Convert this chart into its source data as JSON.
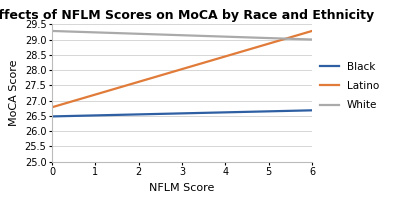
{
  "title": "Effects of NFLM Scores on MoCA by Race and Ethnicity",
  "xlabel": "NFLM Score",
  "ylabel": "MoCA Score",
  "xlim": [
    0,
    6
  ],
  "ylim": [
    25,
    29.5
  ],
  "yticks": [
    25,
    25.5,
    26,
    26.5,
    27,
    27.5,
    28,
    28.5,
    29,
    29.5
  ],
  "xticks": [
    0,
    1,
    2,
    3,
    4,
    5,
    6
  ],
  "lines": {
    "Black": {
      "x": [
        0,
        6
      ],
      "y": [
        26.48,
        26.68
      ],
      "color": "#2E5FA3",
      "linewidth": 1.6
    },
    "Latino": {
      "x": [
        0,
        6
      ],
      "y": [
        26.78,
        29.28
      ],
      "color": "#E07B39",
      "linewidth": 1.6
    },
    "White": {
      "x": [
        0,
        6
      ],
      "y": [
        29.28,
        29.0
      ],
      "color": "#aaaaaa",
      "linewidth": 1.6
    }
  },
  "legend_labels": [
    "Black",
    "Latino",
    "White"
  ],
  "legend_colors": [
    "#2E5FA3",
    "#E07B39",
    "#aaaaaa"
  ],
  "title_fontsize": 9,
  "axis_label_fontsize": 8,
  "tick_fontsize": 7,
  "legend_fontsize": 7.5,
  "bg_color": "#ffffff",
  "grid_color": "#d0d0d0"
}
